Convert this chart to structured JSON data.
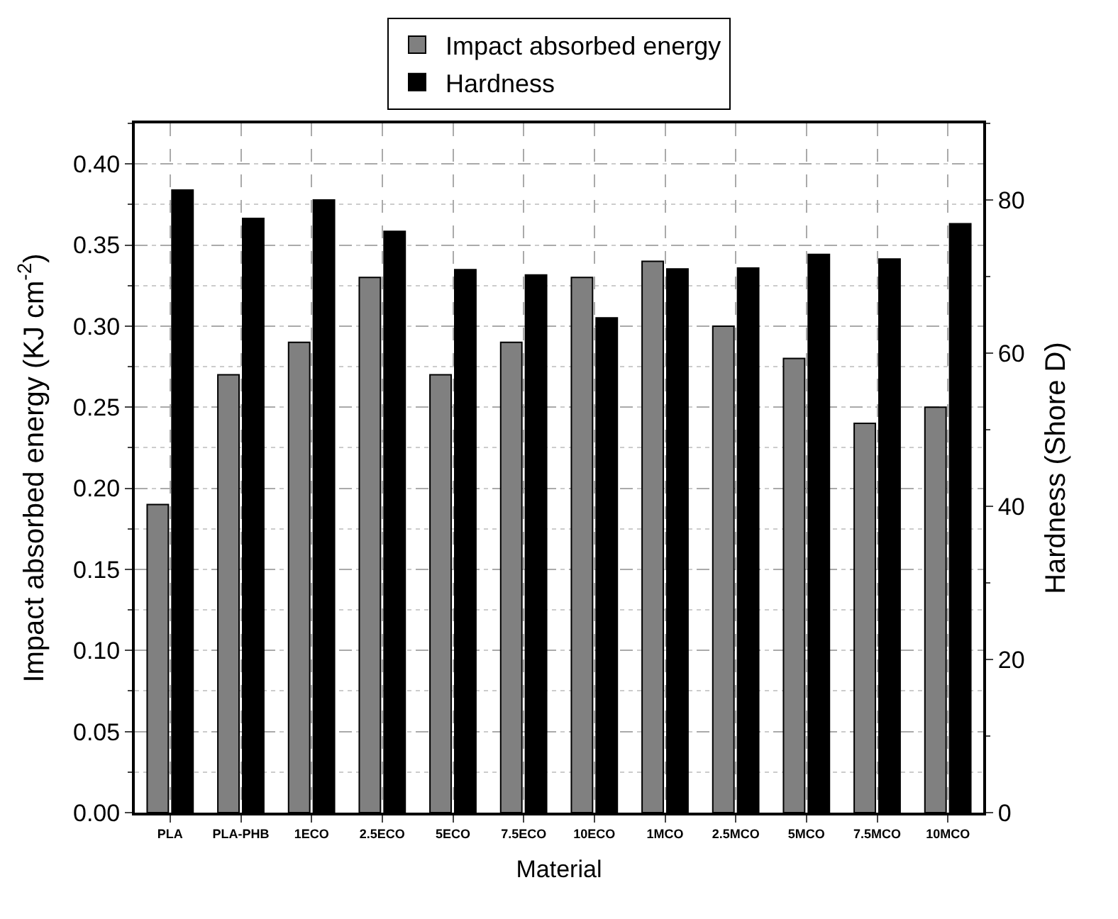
{
  "chart_data": {
    "type": "bar",
    "xlabel": "Material",
    "ylabel": "Impact absorbed energy (KJ cm$^{-2}$)",
    "y2label": "Hardness (Shore D)",
    "categories": [
      "PLA",
      "PLA-PHB",
      "1ECO",
      "2.5ECO",
      "5ECO",
      "7.5ECO",
      "10ECO",
      "1MCO",
      "2.5MCO",
      "5MCO",
      "7.5MCO",
      "10MCO"
    ],
    "series": [
      {
        "name": "Impact absorbed energy",
        "color": "#808080",
        "values": [
          0.19,
          0.27,
          0.29,
          0.33,
          0.27,
          0.29,
          0.33,
          0.34,
          0.3,
          0.28,
          0.24,
          0.25
        ]
      },
      {
        "name": "Hardness",
        "color": "#000000",
        "axis": "y2",
        "values": [
          81.3,
          77.6,
          80.0,
          75.9,
          70.9,
          70.2,
          64.6,
          71.0,
          71.1,
          72.9,
          72.3,
          76.9
        ]
      }
    ],
    "ylim": [
      0,
      0.425
    ],
    "yticks": [
      {
        "value": 0,
        "label": "0.00"
      },
      0.05,
      {
        "value": 0.1,
        "label": "0.10"
      },
      0.15,
      {
        "value": 0.2,
        "label": "0.20"
      },
      0.25,
      {
        "value": 0.3,
        "label": "0.30"
      },
      0.35,
      {
        "value": 0.4,
        "label": "0.40"
      }
    ],
    "y2lim": [
      0,
      90
    ],
    "y2ticks": [
      0,
      20,
      40,
      60,
      80
    ],
    "grid": true,
    "legend": "top"
  }
}
